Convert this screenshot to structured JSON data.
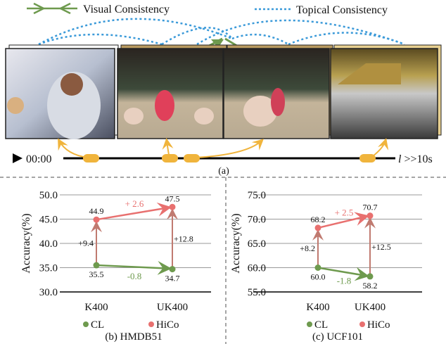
{
  "legend": {
    "visual": {
      "label": "Visual Consistency",
      "color": "#6e9a4e"
    },
    "topical": {
      "label": "Topical Consistency",
      "color": "#3b9ad9"
    }
  },
  "timeline": {
    "start": "00:00",
    "end_var": "l",
    "end_text": " >>10s",
    "clip_color": "#f0b43c",
    "icon": "play-icon"
  },
  "frames": [
    {
      "scene": "interview with microphone"
    },
    {
      "scene": "sumo wrestlers crouching"
    },
    {
      "scene": "sumo wrestlers grappling"
    },
    {
      "scene": "sumo arena crowd"
    }
  ],
  "caption_a": "(a)",
  "chart_data": [
    {
      "type": "line",
      "title": "(b) HMDB51",
      "ylabel": "Accuracy(%)",
      "categories": [
        "K400",
        "UK400"
      ],
      "ylim": [
        30.0,
        50.0
      ],
      "yticks": [
        "30.0",
        "35.0",
        "40.0",
        "45.0",
        "50.0"
      ],
      "grid": true,
      "legend_position": "bottom",
      "series": [
        {
          "name": "CL",
          "color": "#6e9a4e",
          "values": [
            35.5,
            34.7
          ],
          "labels": [
            "35.5",
            "34.7"
          ]
        },
        {
          "name": "HiCo",
          "color": "#e8706f",
          "values": [
            44.9,
            47.5
          ],
          "labels": [
            "44.9",
            "47.5"
          ]
        }
      ],
      "annotations": {
        "cl_delta": "-0.8",
        "hico_delta": "+ 2.6",
        "k400_gain": "+9.4",
        "uk400_gain": "+12.8"
      }
    },
    {
      "type": "line",
      "title": "(c) UCF101",
      "ylabel": "Accuracy(%)",
      "categories": [
        "K400",
        "UK400"
      ],
      "ylim": [
        55.0,
        75.0
      ],
      "yticks": [
        "55.0",
        "60.0",
        "65.0",
        "70.0",
        "75.0"
      ],
      "grid": true,
      "legend_position": "bottom",
      "series": [
        {
          "name": "CL",
          "color": "#6e9a4e",
          "values": [
            60.0,
            58.2
          ],
          "labels": [
            "60.0",
            "58.2"
          ]
        },
        {
          "name": "HiCo",
          "color": "#e8706f",
          "values": [
            68.2,
            70.7
          ],
          "labels": [
            "68.2",
            "70.7"
          ]
        }
      ],
      "annotations": {
        "cl_delta": "-1.8",
        "hico_delta": "+ 2.5",
        "k400_gain": "+8.2",
        "uk400_gain": "+12.5"
      }
    }
  ]
}
